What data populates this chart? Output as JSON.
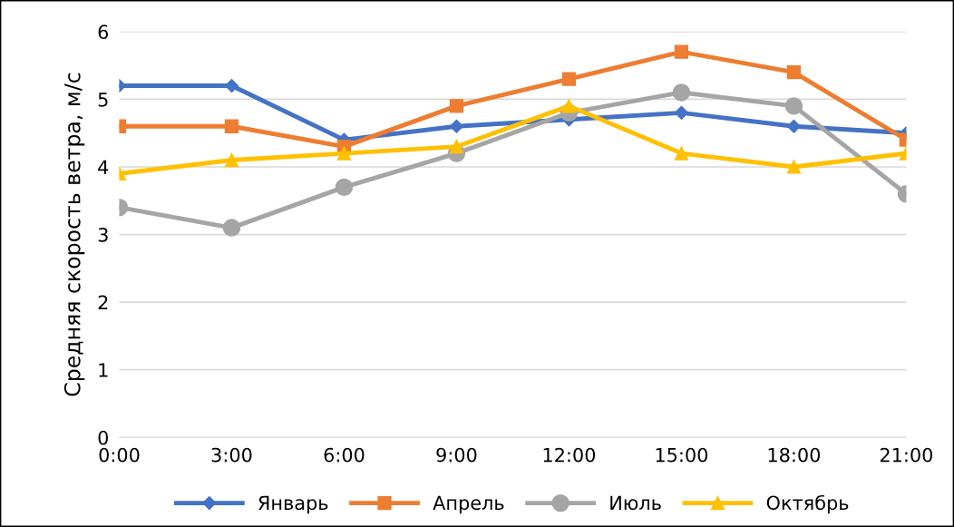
{
  "chart_data": {
    "type": "line",
    "ylabel": "Средняя скорость ветра, м/с",
    "categories": [
      "0:00",
      "3:00",
      "6:00",
      "9:00",
      "12:00",
      "15:00",
      "18:00",
      "21:00"
    ],
    "series": [
      {
        "name": "Январь",
        "color": "#4472c4",
        "marker": "diamond",
        "values": [
          5.2,
          5.2,
          4.4,
          4.6,
          4.7,
          4.8,
          4.6,
          4.5
        ]
      },
      {
        "name": "Апрель",
        "color": "#ed7d31",
        "marker": "square",
        "values": [
          4.6,
          4.6,
          4.3,
          4.9,
          5.3,
          5.7,
          5.4,
          4.4
        ]
      },
      {
        "name": "Июль",
        "color": "#a5a5a5",
        "marker": "circle",
        "values": [
          3.4,
          3.1,
          3.7,
          4.2,
          4.8,
          5.1,
          4.9,
          3.6
        ]
      },
      {
        "name": "Октябрь",
        "color": "#ffc000",
        "marker": "triangle",
        "values": [
          3.9,
          4.1,
          4.2,
          4.3,
          4.9,
          4.2,
          4.0,
          4.2
        ]
      }
    ],
    "ylim": [
      0,
      6
    ],
    "yticks": [
      0,
      1,
      2,
      3,
      4,
      5,
      6
    ],
    "grid": "y",
    "legend": "bottom",
    "line_style": "solid"
  }
}
